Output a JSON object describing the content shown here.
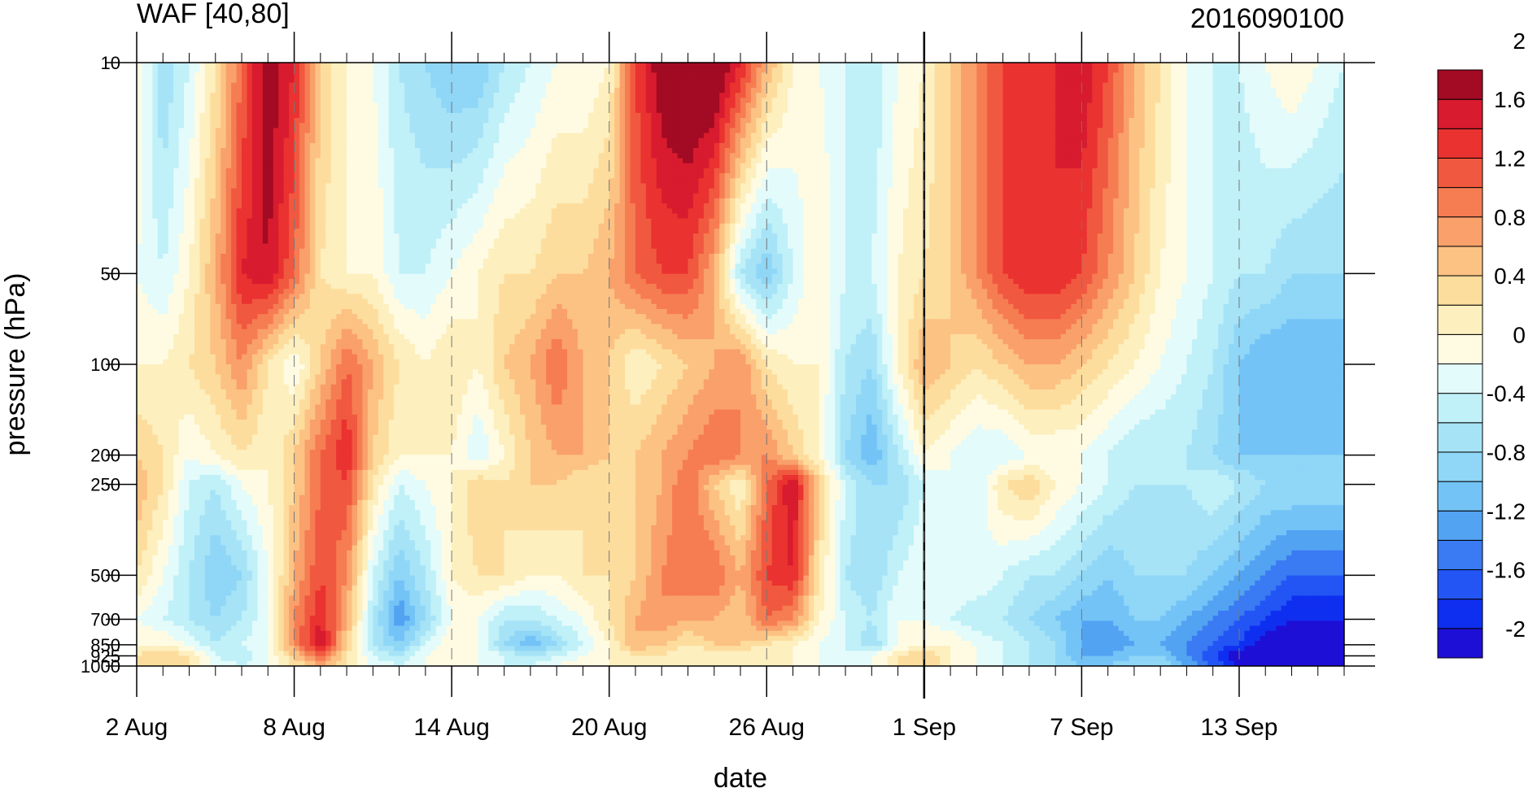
{
  "chart_data": {
    "type": "heatmap",
    "title_left": "WAF [40,80]",
    "title_right": "2016090100",
    "xlabel": "date",
    "ylabel": "pressure (hPa)",
    "x_ticks": [
      {
        "label": "2 Aug",
        "day": 2
      },
      {
        "label": "8 Aug",
        "day": 8
      },
      {
        "label": "14 Aug",
        "day": 14
      },
      {
        "label": "20 Aug",
        "day": 20
      },
      {
        "label": "26 Aug",
        "day": 26
      },
      {
        "label": "1 Sep",
        "day": 32
      },
      {
        "label": "7 Sep",
        "day": 38
      },
      {
        "label": "13 Sep",
        "day": 44
      }
    ],
    "x_range": [
      2,
      48
    ],
    "y_scale": "log",
    "y_ticks": [
      10,
      50,
      100,
      200,
      250,
      500,
      700,
      850,
      925,
      1000
    ],
    "y_range": [
      10,
      1000
    ],
    "vertical_marker_day": 32,
    "colorbar": {
      "min": -2.2,
      "step": 0.2,
      "tick_labels": [
        "2",
        "1.6",
        "1.2",
        "0.8",
        "0.4",
        "0",
        "-0.4",
        "-0.8",
        "-1.2",
        "-1.6",
        "-2"
      ],
      "tick_values": [
        2,
        1.6,
        1.2,
        0.8,
        0.4,
        0,
        -0.4,
        -0.8,
        -1.2,
        -1.6,
        -2
      ],
      "colors": [
        "#1e0fd6",
        "#0f2ff0",
        "#2355f5",
        "#3a7af2",
        "#52a3f2",
        "#74c3f7",
        "#8fd6f7",
        "#a6e3f7",
        "#c0f0f8",
        "#e3fbfa",
        "#fffbe3",
        "#fdefbe",
        "#fddd9d",
        "#fcc283",
        "#f9a06b",
        "#f67c52",
        "#f15840",
        "#ea3230",
        "#d81b2e",
        "#a30a23"
      ]
    },
    "pressure_levels": [
      10,
      50,
      100,
      200,
      250,
      500,
      700,
      850,
      925,
      1000
    ],
    "days": [
      2,
      3,
      4,
      5,
      6,
      7,
      8,
      9,
      10,
      11,
      12,
      13,
      14,
      15,
      16,
      17,
      18,
      19,
      20,
      21,
      22,
      23,
      24,
      25,
      26,
      27,
      28,
      29,
      30,
      31,
      32,
      33,
      34,
      35,
      36,
      37,
      38,
      39,
      40,
      41,
      42,
      43,
      44,
      45,
      46,
      47,
      48
    ],
    "waf": [
      [
        0.0,
        -0.8,
        -0.4,
        0.2,
        1.0,
        1.8,
        1.4,
        0.4,
        0.0,
        -0.2,
        -0.6,
        -0.8,
        -1.0,
        -1.0,
        -0.6,
        -0.4,
        -0.2,
        -0.2,
        0.0,
        1.2,
        1.8,
        2.0,
        2.0,
        1.4,
        0.6,
        0.0,
        -0.2,
        -0.4,
        -0.6,
        -0.2,
        0.0,
        0.4,
        0.8,
        1.2,
        1.2,
        1.4,
        1.6,
        1.2,
        0.6,
        0.2,
        -0.2,
        -0.4,
        -0.4,
        -0.2,
        0.0,
        -0.2,
        -0.4
      ],
      [
        -0.2,
        -0.4,
        0.0,
        0.6,
        1.4,
        1.6,
        1.0,
        0.2,
        0.0,
        0.0,
        -0.4,
        -0.4,
        -0.2,
        0.0,
        0.2,
        0.2,
        0.4,
        0.4,
        0.6,
        1.0,
        1.2,
        1.2,
        0.6,
        -0.6,
        -1.0,
        -0.4,
        0.0,
        -0.4,
        -0.4,
        0.0,
        0.2,
        0.4,
        0.8,
        1.2,
        1.4,
        1.4,
        1.2,
        0.8,
        0.4,
        0.0,
        -0.2,
        -0.4,
        -0.6,
        -0.6,
        -0.8,
        -0.8,
        -0.8
      ],
      [
        0.0,
        0.0,
        0.2,
        0.4,
        0.8,
        0.2,
        -0.2,
        0.4,
        1.0,
        0.6,
        0.2,
        0.0,
        0.2,
        0.0,
        0.4,
        0.6,
        1.0,
        0.6,
        0.4,
        0.0,
        0.2,
        0.4,
        0.6,
        0.8,
        0.2,
        0.0,
        0.0,
        -0.6,
        -0.8,
        0.0,
        0.6,
        0.4,
        0.2,
        0.4,
        0.6,
        0.6,
        0.4,
        0.2,
        0.0,
        -0.2,
        -0.4,
        -0.6,
        -1.0,
        -1.2,
        -1.2,
        -1.2,
        -1.2
      ],
      [
        0.4,
        0.2,
        -0.2,
        0.0,
        0.2,
        0.0,
        0.4,
        1.0,
        1.4,
        0.4,
        0.0,
        0.0,
        0.0,
        -0.4,
        0.0,
        0.4,
        0.6,
        0.6,
        0.4,
        0.4,
        0.6,
        0.8,
        1.0,
        0.8,
        0.8,
        0.4,
        0.0,
        -0.8,
        -1.2,
        -0.6,
        0.0,
        -0.2,
        -0.4,
        -0.4,
        -0.2,
        -0.2,
        -0.2,
        -0.4,
        -0.6,
        -0.6,
        -0.6,
        -0.8,
        -1.0,
        -1.0,
        -1.0,
        -1.0,
        -1.0
      ],
      [
        0.6,
        0.2,
        -0.4,
        -0.6,
        -0.2,
        0.0,
        0.4,
        1.0,
        1.2,
        0.2,
        -0.4,
        -0.2,
        0.0,
        0.4,
        0.2,
        0.4,
        0.4,
        0.2,
        0.2,
        0.4,
        0.6,
        1.0,
        0.4,
        0.0,
        1.0,
        1.6,
        0.4,
        -0.4,
        -0.8,
        -0.8,
        -0.4,
        -0.2,
        -0.4,
        0.2,
        0.4,
        0.0,
        -0.2,
        -0.4,
        -0.6,
        -0.6,
        -0.6,
        -0.4,
        -0.6,
        -0.8,
        -0.8,
        -0.8,
        -0.8
      ],
      [
        0.2,
        -0.2,
        -0.6,
        -1.0,
        -0.8,
        -0.2,
        0.6,
        1.2,
        0.8,
        -0.4,
        -1.0,
        -0.6,
        0.0,
        0.2,
        0.2,
        0.0,
        0.0,
        0.2,
        0.2,
        0.4,
        0.8,
        1.0,
        1.0,
        0.6,
        1.2,
        1.4,
        0.2,
        -0.6,
        -0.8,
        -0.4,
        -0.2,
        -0.2,
        -0.2,
        -0.4,
        -0.6,
        -0.6,
        -0.8,
        -1.0,
        -0.8,
        -0.8,
        -0.8,
        -1.0,
        -1.2,
        -1.4,
        -1.6,
        -1.6,
        -1.6
      ],
      [
        -0.2,
        -0.4,
        -0.6,
        -0.8,
        -0.6,
        -0.2,
        0.8,
        1.4,
        0.6,
        -0.6,
        -1.4,
        -0.8,
        -0.2,
        -0.2,
        -0.6,
        -0.6,
        -0.4,
        -0.2,
        0.2,
        0.6,
        0.8,
        0.6,
        0.6,
        0.4,
        1.0,
        0.8,
        0.0,
        -0.4,
        -0.6,
        -0.2,
        -0.2,
        -0.4,
        -0.6,
        -0.6,
        -0.8,
        -1.0,
        -1.2,
        -1.2,
        -1.0,
        -1.0,
        -1.2,
        -1.4,
        -1.6,
        -1.8,
        -2.0,
        -2.0,
        -2.0
      ],
      [
        0.0,
        0.0,
        -0.2,
        -0.6,
        -0.4,
        -0.2,
        0.8,
        1.6,
        0.4,
        -0.6,
        -1.0,
        -0.4,
        0.0,
        -0.2,
        -0.8,
        -1.2,
        -0.8,
        -0.4,
        0.0,
        0.6,
        0.4,
        0.2,
        0.4,
        0.4,
        0.2,
        0.0,
        -0.2,
        -0.4,
        -0.8,
        -0.2,
        0.0,
        0.0,
        -0.2,
        -0.4,
        -0.6,
        -0.8,
        -1.2,
        -1.4,
        -1.2,
        -1.2,
        -1.4,
        -1.6,
        -1.8,
        -2.2,
        -2.2,
        -2.2,
        -2.2
      ],
      [
        0.2,
        0.4,
        0.2,
        -0.4,
        -0.6,
        -0.2,
        0.4,
        1.0,
        0.2,
        -0.4,
        -0.6,
        -0.2,
        0.0,
        -0.2,
        -0.4,
        -0.6,
        -0.4,
        -0.2,
        0.0,
        0.2,
        0.2,
        0.0,
        0.0,
        0.0,
        0.0,
        0.0,
        -0.2,
        -0.4,
        -0.2,
        0.2,
        0.4,
        0.0,
        -0.2,
        -0.4,
        -0.6,
        -0.8,
        -1.2,
        -1.2,
        -1.0,
        -1.0,
        -1.4,
        -1.8,
        -2.2,
        -2.2,
        -2.2,
        -2.2,
        -2.2
      ],
      [
        0.2,
        0.4,
        0.2,
        -0.2,
        -0.4,
        -0.2,
        0.2,
        0.6,
        0.2,
        -0.2,
        -0.4,
        -0.2,
        0.0,
        -0.2,
        -0.4,
        -0.4,
        -0.2,
        0.0,
        0.0,
        0.0,
        0.0,
        0.0,
        0.0,
        0.0,
        0.0,
        0.0,
        -0.2,
        -0.4,
        -0.2,
        0.2,
        0.4,
        0.0,
        -0.2,
        -0.4,
        -0.6,
        -0.8,
        -1.0,
        -1.0,
        -0.8,
        -0.8,
        -1.2,
        -1.6,
        -2.0,
        -2.2,
        -2.2,
        -2.2,
        -2.2
      ]
    ]
  }
}
